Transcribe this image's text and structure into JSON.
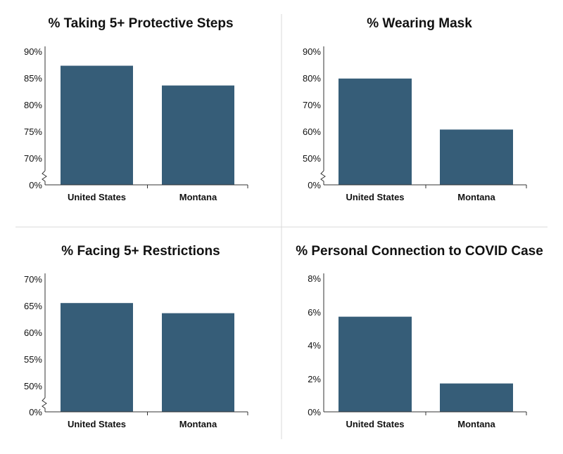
{
  "colors": {
    "bar": "#365d78",
    "axis": "#333333",
    "divider": "#d9d9d9",
    "text": "#111111"
  },
  "chart_data": [
    {
      "type": "bar",
      "title": "% Taking 5+ Protective Steps",
      "categories": [
        "United States",
        "Montana"
      ],
      "values": [
        87.3,
        83.6
      ],
      "yticks": [
        "0%",
        "70%",
        "75%",
        "80%",
        "85%",
        "90%"
      ],
      "ylim": [
        65,
        90
      ],
      "axis_break": true,
      "xlabel": "",
      "ylabel": ""
    },
    {
      "type": "bar",
      "title": "% Wearing Mask",
      "categories": [
        "United States",
        "Montana"
      ],
      "values": [
        79.8,
        60.7
      ],
      "yticks": [
        "0%",
        "50%",
        "60%",
        "70%",
        "80%",
        "90%"
      ],
      "ylim": [
        40,
        90
      ],
      "axis_break": true,
      "xlabel": "",
      "ylabel": ""
    },
    {
      "type": "bar",
      "title": "% Facing 5+ Restrictions",
      "categories": [
        "United States",
        "Montana"
      ],
      "values": [
        65.5,
        63.6
      ],
      "yticks": [
        "0%",
        "50%",
        "55%",
        "60%",
        "65%",
        "70%"
      ],
      "ylim": [
        45,
        70
      ],
      "axis_break": true,
      "xlabel": "",
      "ylabel": ""
    },
    {
      "type": "bar",
      "title": "% Personal Connection to COVID Case",
      "categories": [
        "United States",
        "Montana"
      ],
      "values": [
        5.7,
        1.7
      ],
      "yticks": [
        "0%",
        "2%",
        "4%",
        "6%",
        "8%"
      ],
      "ylim": [
        0,
        8
      ],
      "axis_break": false,
      "xlabel": "",
      "ylabel": ""
    }
  ]
}
